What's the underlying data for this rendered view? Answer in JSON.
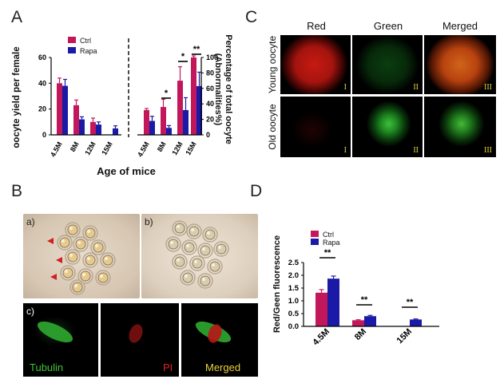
{
  "panels": {
    "A": "A",
    "B": "B",
    "C": "C",
    "D": "D"
  },
  "colors": {
    "ctrl": "#c2185b",
    "rapa": "#1a1aa6"
  },
  "panel_a": {
    "legend": [
      "Ctrl",
      "Rapa"
    ],
    "left_ylabel": "oocyte yield per female",
    "right_ylabel_line1": "Percentage of total oocyte",
    "right_ylabel_line2": "(Abnormalities%)",
    "xlabel": "Age of mice",
    "left_ticks": [
      "0",
      "20",
      "40",
      "60"
    ],
    "right_ticks": [
      "0",
      "20",
      "40",
      "60",
      "80",
      "100"
    ],
    "left_categories": [
      "4.5M",
      "8M",
      "12M",
      "15M"
    ],
    "right_categories": [
      "4.5M",
      "8M",
      "12M",
      "15M"
    ],
    "significance": [
      "*",
      "*",
      "**"
    ]
  },
  "panel_c": {
    "columns": [
      "Red",
      "Green",
      "Merged"
    ],
    "rows": [
      "Young oocyte",
      "Old oocyte"
    ],
    "numerals": [
      "I",
      "II",
      "III"
    ]
  },
  "panel_b": {
    "sublabels": [
      "a)",
      "b)",
      "c)"
    ],
    "stains": [
      "Tubulin",
      "PI",
      "Merged"
    ]
  },
  "panel_d": {
    "legend": [
      "Ctrl",
      "Rapa"
    ],
    "ylabel": "Red/Geen fluorescence",
    "ticks": [
      "0.0",
      "0.5",
      "1.0",
      "1.5",
      "2.0",
      "2.5"
    ],
    "categories": [
      "4.5M",
      "8M",
      "15M"
    ],
    "significance": [
      "**",
      "**",
      "**"
    ]
  },
  "chart_data": [
    {
      "type": "bar",
      "categories": [
        "4.5M",
        "8M",
        "12M",
        "15M"
      ],
      "series": [
        {
          "name": "Ctrl",
          "values": [
            40,
            23,
            10,
            0
          ],
          "errors": [
            4,
            4,
            3,
            0
          ]
        },
        {
          "name": "Rapa",
          "values": [
            38,
            12,
            8,
            5
          ],
          "errors": [
            5,
            2,
            2,
            2
          ]
        }
      ],
      "ylabel": "oocyte yield per female",
      "ylim": [
        0,
        60
      ]
    },
    {
      "type": "bar",
      "categories": [
        "4.5M",
        "8M",
        "12M",
        "15M"
      ],
      "series": [
        {
          "name": "Ctrl",
          "values": [
            32,
            36,
            70,
            100
          ],
          "errors": [
            2,
            10,
            18,
            2
          ]
        },
        {
          "name": "Rapa",
          "values": [
            18,
            9,
            32,
            63
          ],
          "errors": [
            6,
            3,
            16,
            18
          ]
        }
      ],
      "ylabel": "Percentage of total oocyte (Abnormalities%)",
      "ylim": [
        0,
        100
      ]
    },
    {
      "type": "bar",
      "categories": [
        "4.5M",
        "8M",
        "15M"
      ],
      "series": [
        {
          "name": "Ctrl",
          "values": [
            1.32,
            0.24,
            0.0
          ],
          "errors": [
            0.12,
            0.02,
            0.0
          ]
        },
        {
          "name": "Rapa",
          "values": [
            1.87,
            0.4,
            0.27
          ],
          "errors": [
            0.1,
            0.03,
            0.02
          ]
        }
      ],
      "ylabel": "Red/Geen fluorescence",
      "ylim": [
        0,
        2.5
      ]
    }
  ]
}
